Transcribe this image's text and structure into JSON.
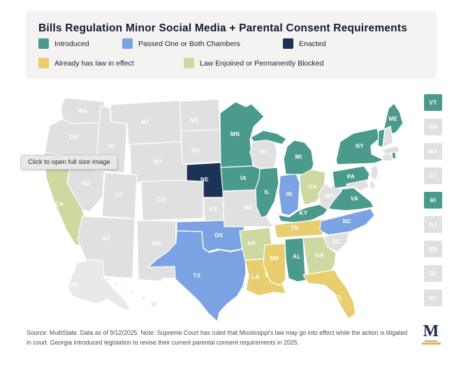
{
  "header": {
    "title": "Bills Regulation Minor Social Media + Parental Consent Requirements"
  },
  "legend": {
    "items": [
      {
        "id": "introduced",
        "label": "Introduced",
        "color": "#4a9b8c"
      },
      {
        "id": "passed",
        "label": "Passed One or Both Chambers",
        "color": "#7ba3e3"
      },
      {
        "id": "enacted",
        "label": "Enacted",
        "color": "#1b3356"
      },
      {
        "id": "law_in_effect",
        "label": "Already has law in effect",
        "color": "#e9ce70"
      },
      {
        "id": "blocked",
        "label": "Law Enjoined or Permanently Blocked",
        "color": "#cdd9a0"
      }
    ],
    "default_color": "#e0e0e0",
    "inset_color": "#e9e9e9"
  },
  "tooltip": {
    "text": "Click to open full size image"
  },
  "map": {
    "states": [
      {
        "abbr": "WA",
        "status": "none"
      },
      {
        "abbr": "OR",
        "status": "none"
      },
      {
        "abbr": "CA",
        "status": "blocked"
      },
      {
        "abbr": "NV",
        "status": "none"
      },
      {
        "abbr": "ID",
        "status": "none"
      },
      {
        "abbr": "MT",
        "status": "none"
      },
      {
        "abbr": "WY",
        "status": "none"
      },
      {
        "abbr": "UT",
        "status": "none"
      },
      {
        "abbr": "CO",
        "status": "none"
      },
      {
        "abbr": "AZ",
        "status": "none"
      },
      {
        "abbr": "NM",
        "status": "none"
      },
      {
        "abbr": "ND",
        "status": "none"
      },
      {
        "abbr": "SD",
        "status": "none"
      },
      {
        "abbr": "NE",
        "status": "enacted"
      },
      {
        "abbr": "KS",
        "status": "none"
      },
      {
        "abbr": "OK",
        "status": "passed"
      },
      {
        "abbr": "TX",
        "status": "passed"
      },
      {
        "abbr": "MN",
        "status": "introduced"
      },
      {
        "abbr": "IA",
        "status": "introduced"
      },
      {
        "abbr": "MO",
        "status": "none"
      },
      {
        "abbr": "WI",
        "status": "none"
      },
      {
        "abbr": "IL",
        "status": "introduced"
      },
      {
        "abbr": "IN",
        "status": "passed"
      },
      {
        "abbr": "MI",
        "status": "introduced"
      },
      {
        "abbr": "OH",
        "status": "blocked"
      },
      {
        "abbr": "KY",
        "status": "introduced"
      },
      {
        "abbr": "TN",
        "status": "law_in_effect"
      },
      {
        "abbr": "AR",
        "status": "blocked"
      },
      {
        "abbr": "LA",
        "status": "law_in_effect"
      },
      {
        "abbr": "MS",
        "status": "law_in_effect"
      },
      {
        "abbr": "AL",
        "status": "introduced"
      },
      {
        "abbr": "GA",
        "status": "blocked"
      },
      {
        "abbr": "FL",
        "status": "law_in_effect"
      },
      {
        "abbr": "SC",
        "status": "none"
      },
      {
        "abbr": "NC",
        "status": "passed"
      },
      {
        "abbr": "VA",
        "status": "introduced"
      },
      {
        "abbr": "WV",
        "status": "none"
      },
      {
        "abbr": "PA",
        "status": "introduced"
      },
      {
        "abbr": "NY",
        "status": "introduced"
      },
      {
        "abbr": "ME",
        "status": "introduced"
      },
      {
        "abbr": "VT",
        "status": "introduced"
      },
      {
        "abbr": "NH",
        "status": "none"
      },
      {
        "abbr": "MA",
        "status": "none"
      },
      {
        "abbr": "CT",
        "status": "none"
      },
      {
        "abbr": "RI",
        "status": "introduced"
      },
      {
        "abbr": "NJ",
        "status": "none"
      },
      {
        "abbr": "DE",
        "status": "none"
      },
      {
        "abbr": "MD",
        "status": "none"
      },
      {
        "abbr": "AK",
        "status": "inset"
      },
      {
        "abbr": "HI",
        "status": "inset"
      }
    ],
    "boxes": [
      {
        "abbr": "VT",
        "status": "introduced"
      },
      {
        "abbr": "NH",
        "status": "none"
      },
      {
        "abbr": "MA",
        "status": "none"
      },
      {
        "abbr": "CT",
        "status": "none"
      },
      {
        "abbr": "RI",
        "status": "introduced"
      },
      {
        "abbr": "NJ",
        "status": "none"
      },
      {
        "abbr": "MD",
        "status": "none"
      },
      {
        "abbr": "DE",
        "status": "none"
      },
      {
        "abbr": "DC",
        "status": "none"
      }
    ]
  },
  "footer": {
    "text": "Source: MultiState. Data as of 9/12/2025. Note: Supreme Court has ruled that Mississippi's law may go into effect while the action is litigated in court. Georgia introduced legislation to revise their current parental consent requirements in 2025."
  },
  "logo": {
    "letter": "M"
  }
}
